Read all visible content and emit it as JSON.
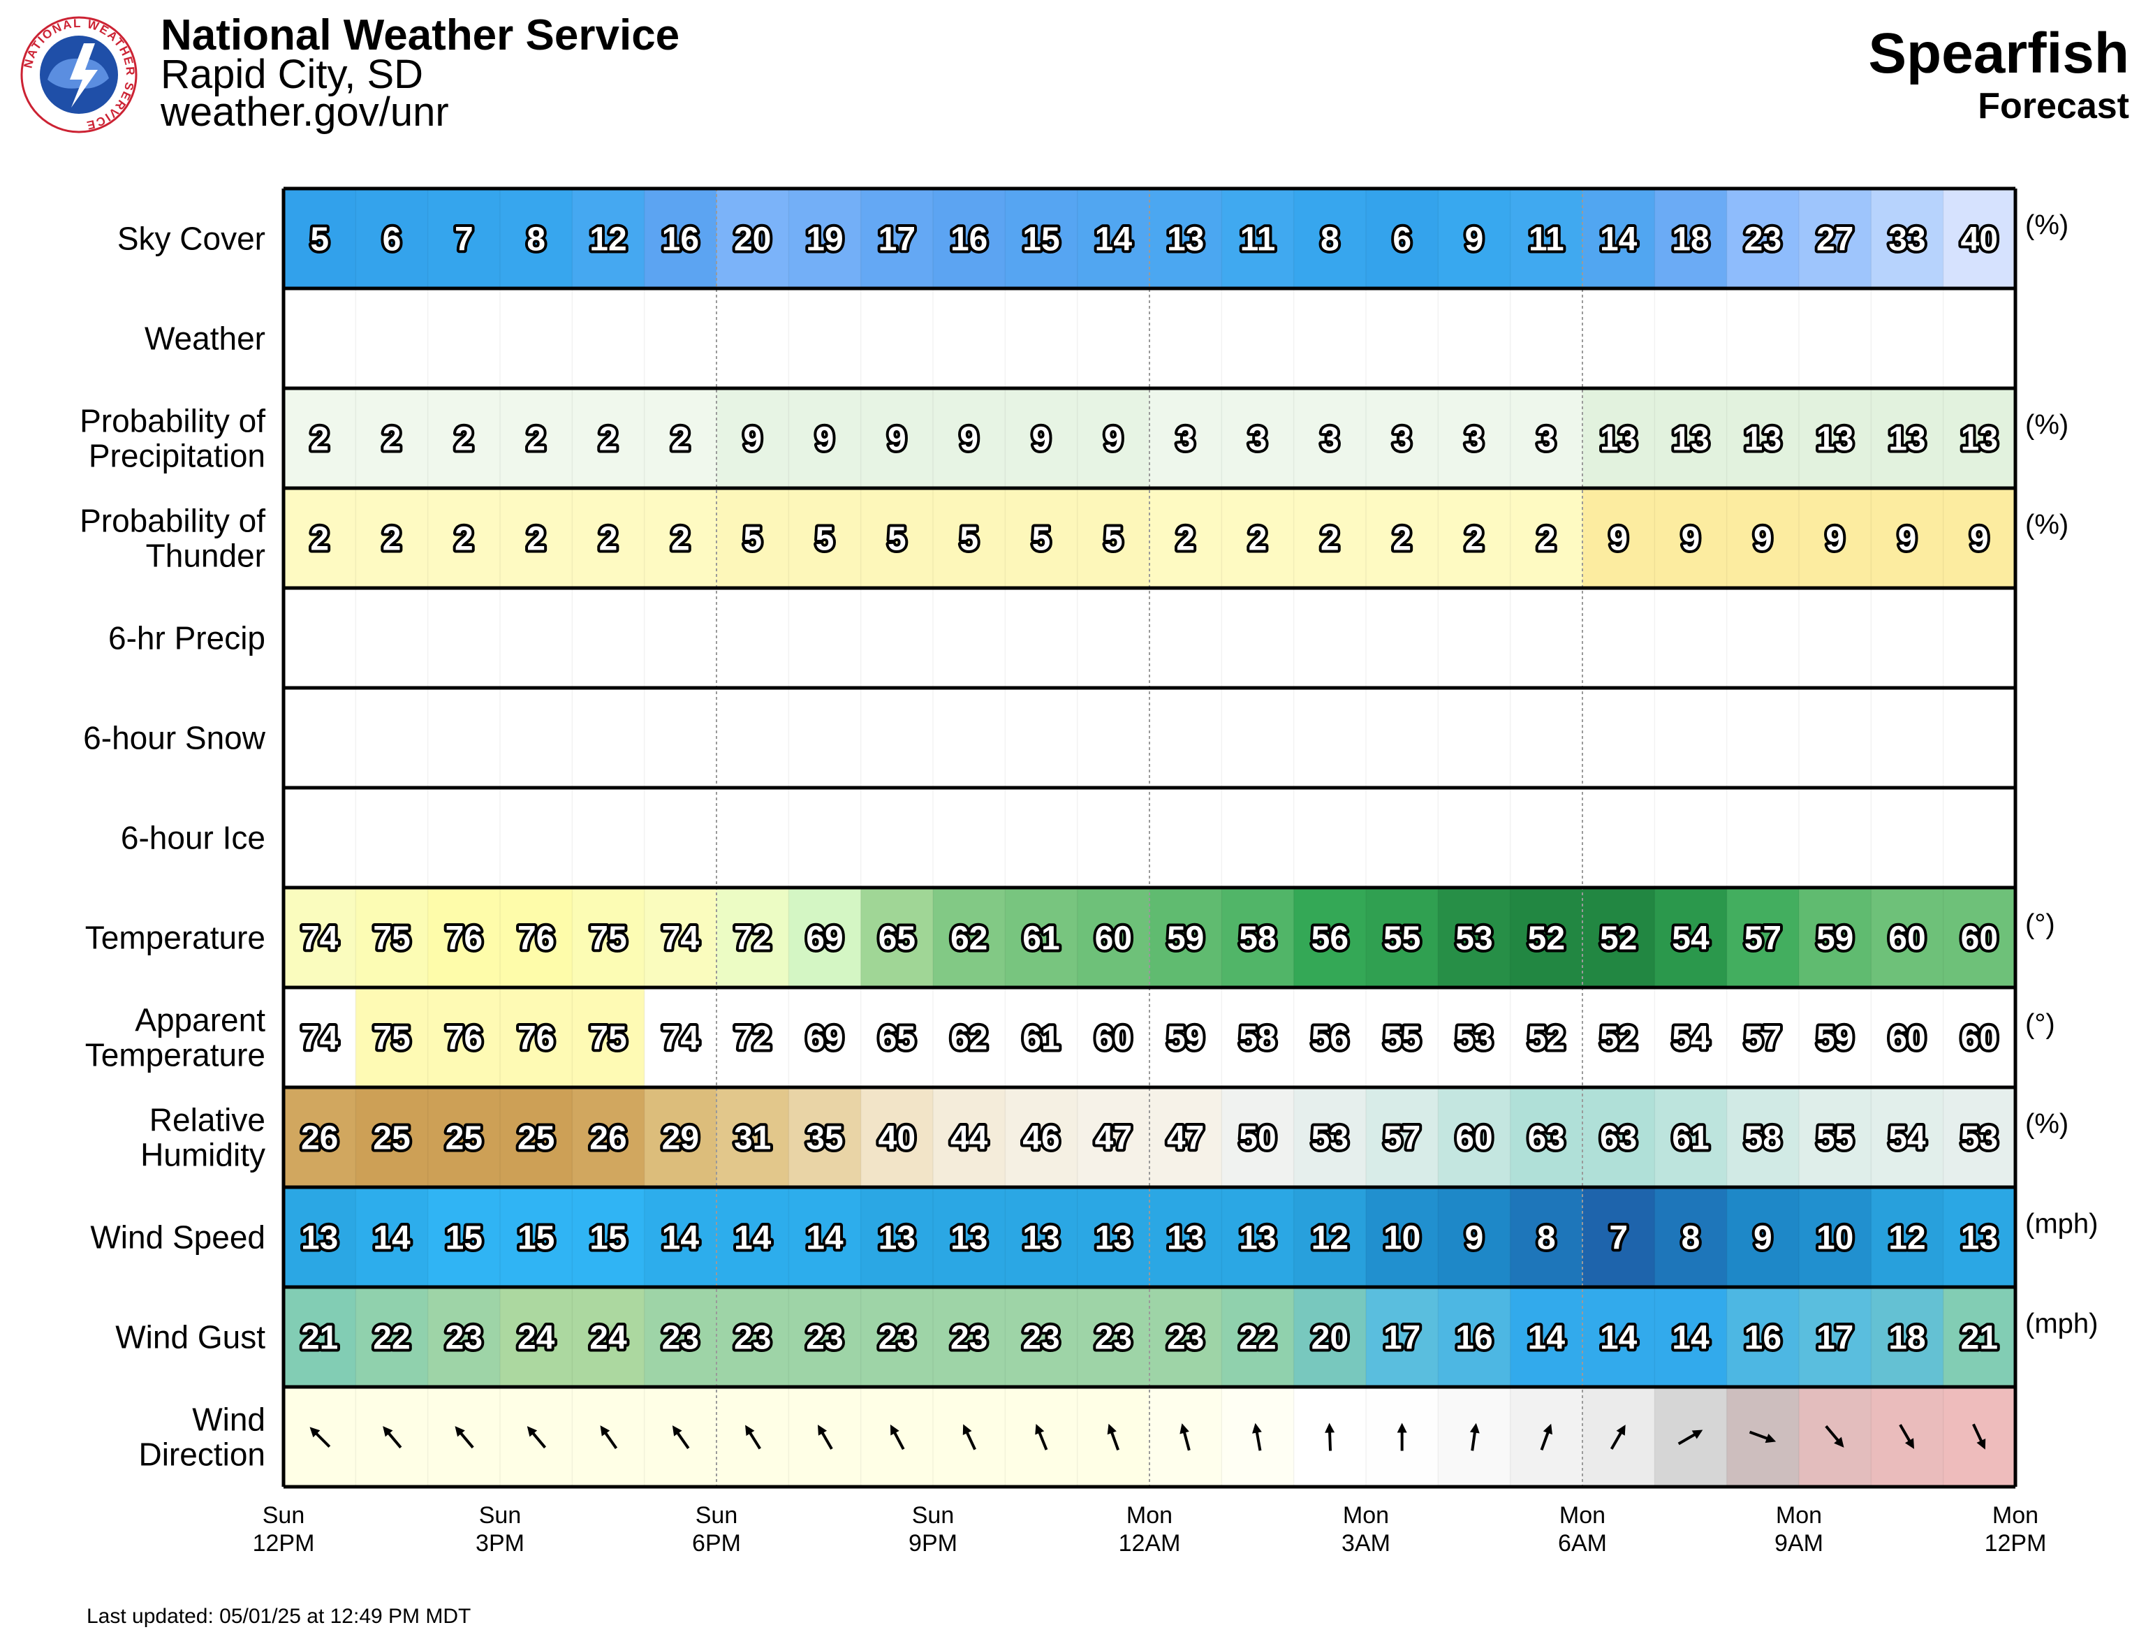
{
  "header": {
    "org_title": "National Weather Service",
    "office": "Rapid City, SD",
    "website": "weather.gov/unr",
    "location": "Spearfish",
    "subtitle": "Forecast",
    "logo_ring_text": "NATIONAL WEATHER SERVICE"
  },
  "footer": {
    "last_updated": "Last updated: 05/01/25 at 12:49 PM MDT"
  },
  "chart_data": {
    "type": "table",
    "hours": 24,
    "time_axis": [
      {
        "day": "Sun",
        "time": "12PM"
      },
      {
        "day": "Sun",
        "time": "3PM"
      },
      {
        "day": "Sun",
        "time": "6PM"
      },
      {
        "day": "Sun",
        "time": "9PM"
      },
      {
        "day": "Mon",
        "time": "12AM"
      },
      {
        "day": "Mon",
        "time": "3AM"
      },
      {
        "day": "Mon",
        "time": "6AM"
      },
      {
        "day": "Mon",
        "time": "9AM"
      },
      {
        "day": "Mon",
        "time": "12PM"
      }
    ],
    "rows": [
      {
        "label": [
          "Sky Cover"
        ],
        "unit": "(%)",
        "kind": "sky",
        "values": [
          5,
          6,
          7,
          8,
          12,
          16,
          20,
          19,
          17,
          16,
          15,
          14,
          13,
          11,
          8,
          6,
          9,
          11,
          14,
          18,
          23,
          27,
          33,
          40
        ]
      },
      {
        "label": [
          "Weather"
        ],
        "unit": "",
        "kind": "blank",
        "values": []
      },
      {
        "label": [
          "Probability of",
          "Precipitation"
        ],
        "unit": "(%)",
        "kind": "pop",
        "values": [
          2,
          2,
          2,
          2,
          2,
          2,
          9,
          9,
          9,
          9,
          9,
          9,
          3,
          3,
          3,
          3,
          3,
          3,
          13,
          13,
          13,
          13,
          13,
          13
        ]
      },
      {
        "label": [
          "Probability of",
          "Thunder"
        ],
        "unit": "(%)",
        "kind": "thunder",
        "values": [
          2,
          2,
          2,
          2,
          2,
          2,
          5,
          5,
          5,
          5,
          5,
          5,
          2,
          2,
          2,
          2,
          2,
          2,
          9,
          9,
          9,
          9,
          9,
          9
        ]
      },
      {
        "label": [
          "6-hr Precip"
        ],
        "unit": "",
        "kind": "blank",
        "values": []
      },
      {
        "label": [
          "6-hour Snow"
        ],
        "unit": "",
        "kind": "blank",
        "values": []
      },
      {
        "label": [
          "6-hour Ice"
        ],
        "unit": "",
        "kind": "blank",
        "values": []
      },
      {
        "label": [
          "Temperature"
        ],
        "unit": "(°)",
        "kind": "temp",
        "values": [
          74,
          75,
          76,
          76,
          75,
          74,
          72,
          69,
          65,
          62,
          61,
          60,
          59,
          58,
          56,
          55,
          53,
          52,
          52,
          54,
          57,
          59,
          60,
          60
        ]
      },
      {
        "label": [
          "Apparent",
          "Temperature"
        ],
        "unit": "(°)",
        "kind": "apparent",
        "values": [
          74,
          75,
          76,
          76,
          75,
          74,
          72,
          69,
          65,
          62,
          61,
          60,
          59,
          58,
          56,
          55,
          53,
          52,
          52,
          54,
          57,
          59,
          60,
          60
        ]
      },
      {
        "label": [
          "Relative",
          "Humidity"
        ],
        "unit": "(%)",
        "kind": "rh",
        "values": [
          26,
          25,
          25,
          25,
          26,
          29,
          31,
          35,
          40,
          44,
          46,
          47,
          47,
          50,
          53,
          57,
          60,
          63,
          63,
          61,
          58,
          55,
          54,
          53
        ]
      },
      {
        "label": [
          "Wind Speed"
        ],
        "unit": "(mph)",
        "kind": "wind",
        "values": [
          13,
          14,
          15,
          15,
          15,
          14,
          14,
          14,
          13,
          13,
          13,
          13,
          13,
          13,
          12,
          10,
          9,
          8,
          7,
          8,
          9,
          10,
          12,
          13
        ]
      },
      {
        "label": [
          "Wind Gust"
        ],
        "unit": "(mph)",
        "kind": "gust",
        "values": [
          21,
          22,
          23,
          24,
          24,
          23,
          23,
          23,
          23,
          23,
          23,
          23,
          23,
          22,
          20,
          17,
          16,
          14,
          14,
          14,
          16,
          17,
          18,
          21
        ]
      },
      {
        "label": [
          "Wind",
          "Direction"
        ],
        "unit": "",
        "kind": "dir",
        "values": [
          135,
          140,
          140,
          140,
          145,
          145,
          148,
          150,
          152,
          155,
          158,
          160,
          165,
          170,
          178,
          180,
          188,
          200,
          210,
          240,
          290,
          320,
          330,
          335
        ]
      }
    ],
    "direction_units": "degrees (direction wind is from)"
  }
}
